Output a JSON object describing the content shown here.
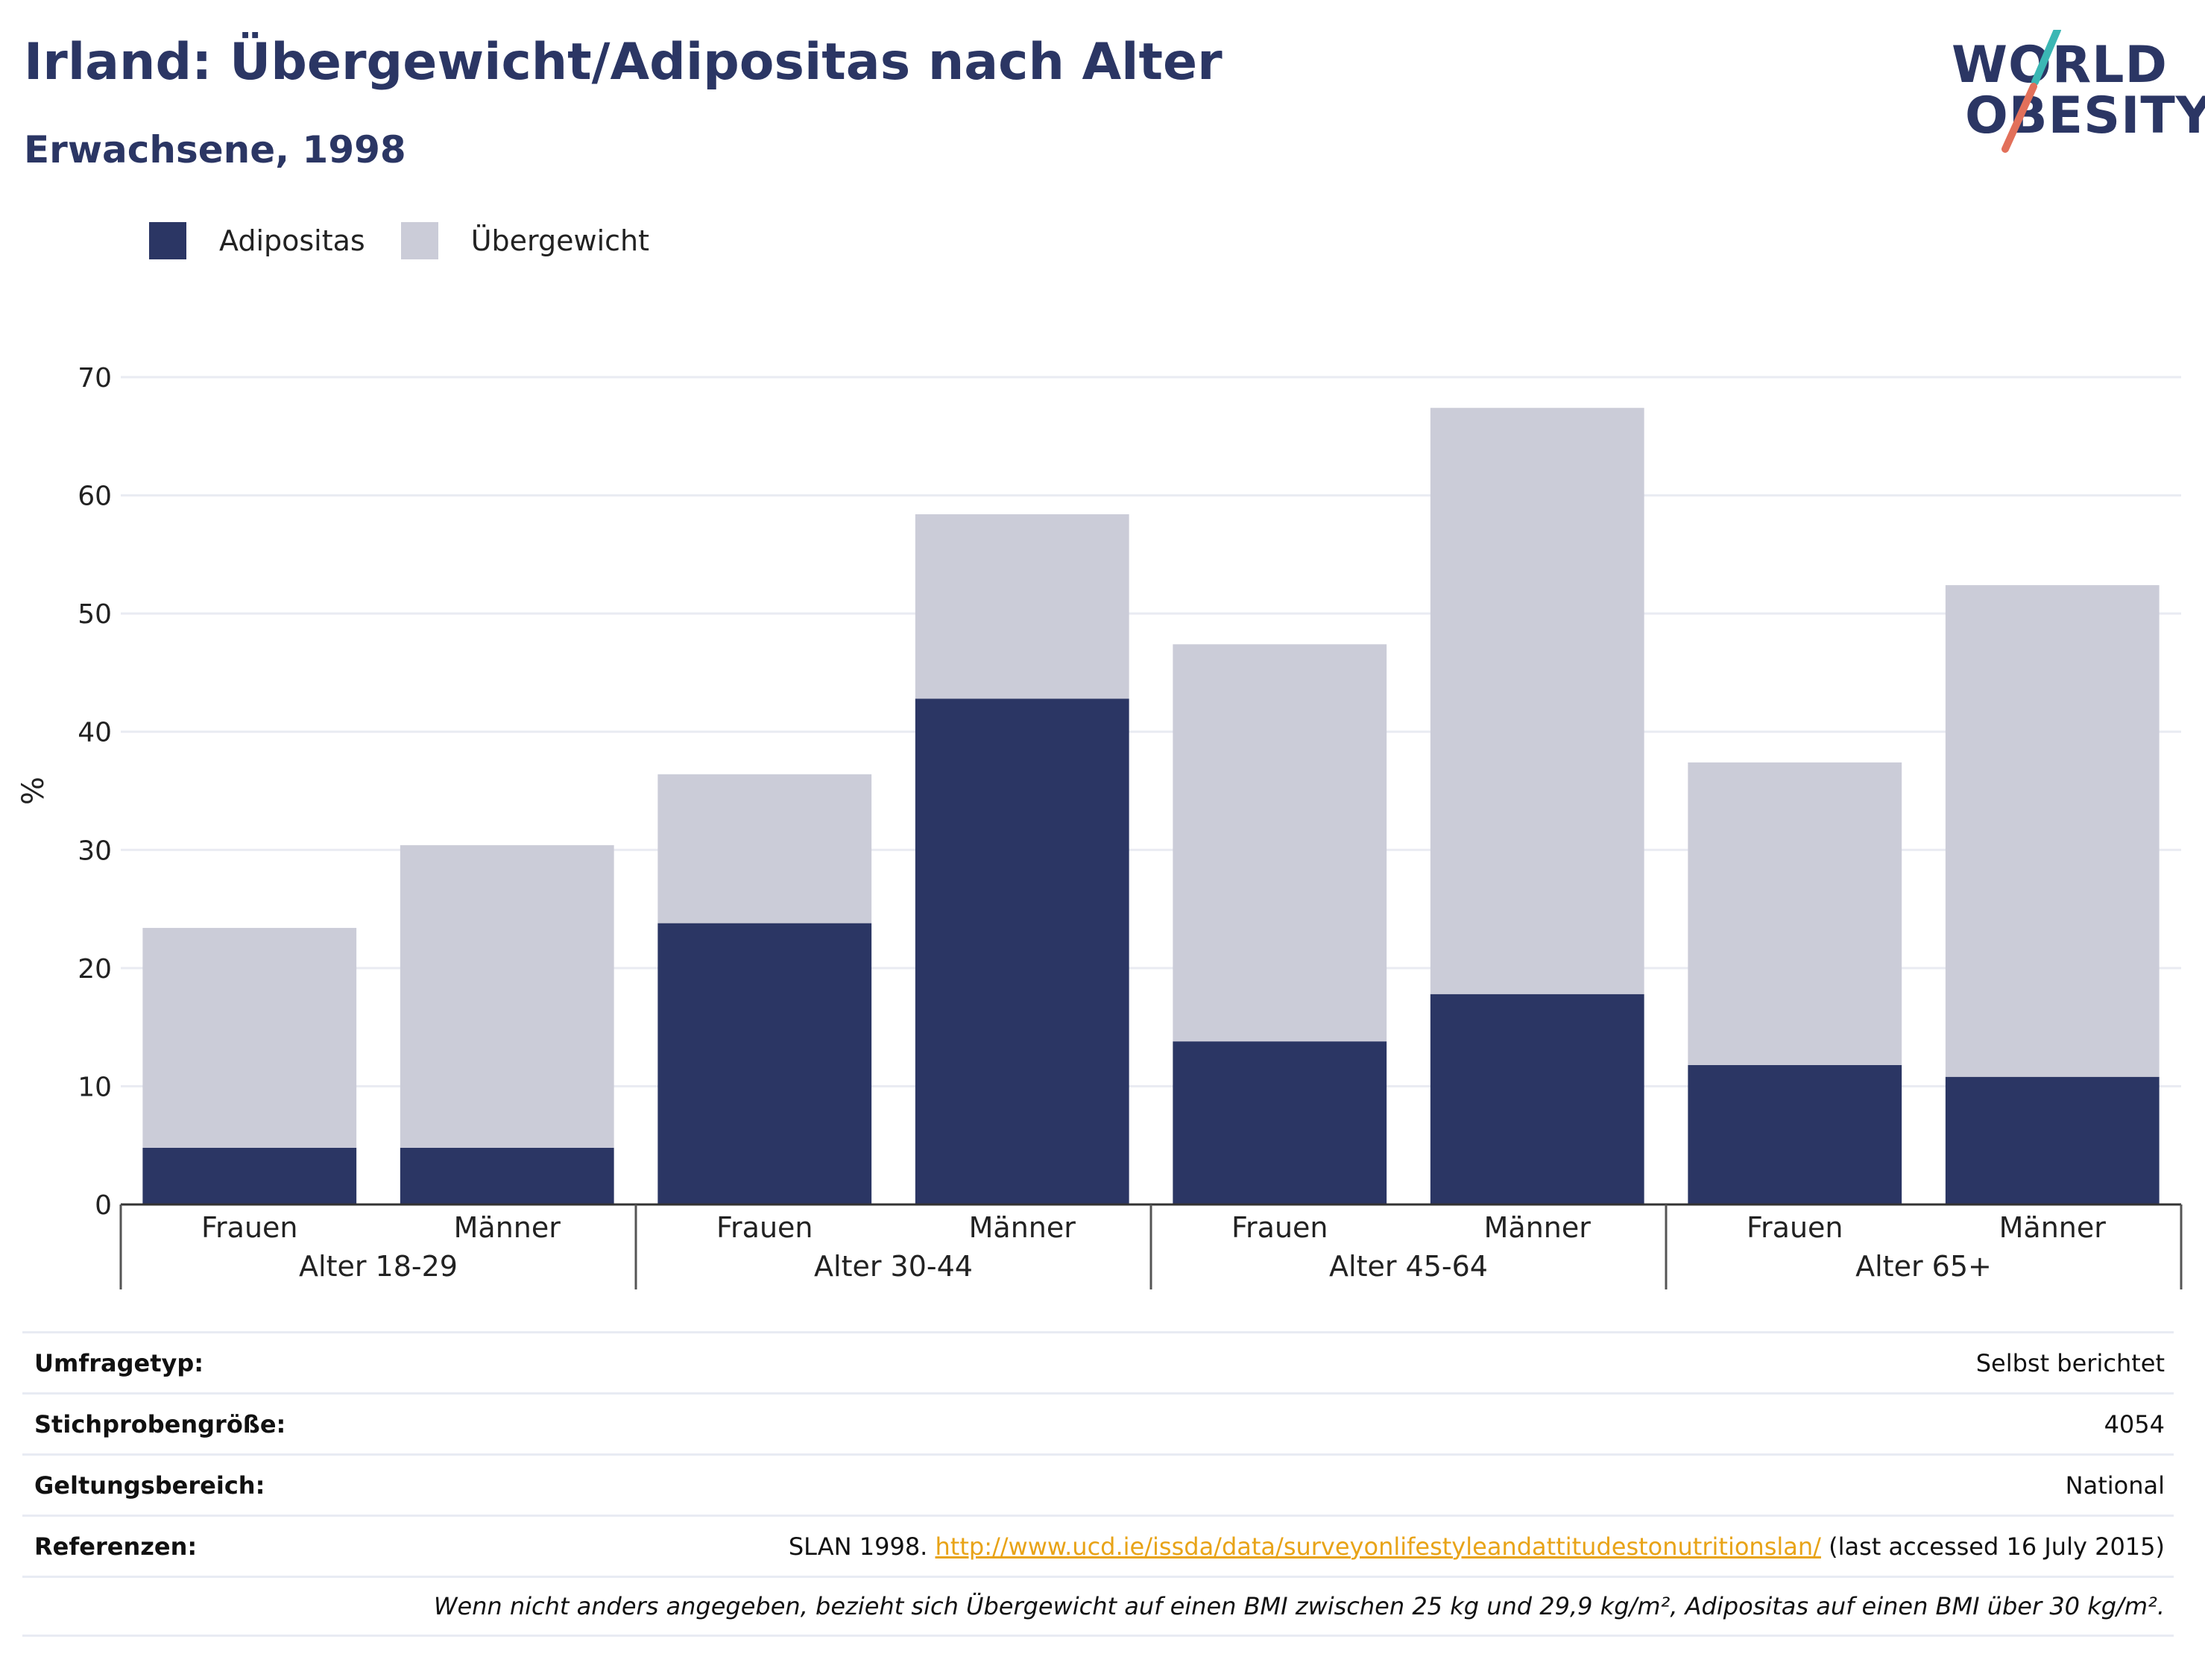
{
  "title": "Irland: Übergewicht/Adipositas nach Alter",
  "subtitle": "Erwachsene, 1998",
  "logo": {
    "line1": "WORLD",
    "line2": "OBESITY"
  },
  "colors": {
    "adipositas": "#2b3664",
    "uebergewicht": "#cbccd8",
    "accent_teal": "#3bb7b4",
    "accent_coral": "#e2705a",
    "link": "#e8a317"
  },
  "chart_data": {
    "type": "bar",
    "stacked": true,
    "ylabel": "%",
    "ylim": [
      0,
      70
    ],
    "yticks": [
      0,
      10,
      20,
      30,
      40,
      50,
      60,
      70
    ],
    "legend": {
      "position": "top-left",
      "entries": [
        "Adipositas",
        "Übergewicht"
      ]
    },
    "groups": [
      "Alter 18-29",
      "Alter 30-44",
      "Alter 45-64",
      "Alter 65+"
    ],
    "categories": [
      "Frauen",
      "Männer",
      "Frauen",
      "Männer",
      "Frauen",
      "Männer",
      "Frauen",
      "Männer"
    ],
    "series": [
      {
        "name": "Adipositas",
        "values": [
          4.8,
          4.8,
          23.8,
          42.8,
          13.8,
          17.8,
          11.8,
          10.8
        ]
      },
      {
        "name": "Übergewicht",
        "values": [
          18.6,
          25.6,
          12.6,
          15.6,
          33.6,
          49.6,
          25.6,
          41.6
        ]
      }
    ]
  },
  "info": {
    "survey_type": {
      "label": "Umfragetyp:",
      "value": "Selbst berichtet"
    },
    "sample_size": {
      "label": "Stichprobengröße:",
      "value": "4054"
    },
    "scope": {
      "label": "Geltungsbereich:",
      "value": "National"
    },
    "references": {
      "label": "Referenzen:",
      "prefix": "SLAN 1998.",
      "url": "http://www.ucd.ie/issda/data/surveyonlifestyleandattitudestonutritionslan/",
      "suffix": "(last accessed 16 July 2015)"
    },
    "note": "Wenn nicht anders angegeben, bezieht sich Übergewicht auf einen BMI zwischen 25 kg und 29,9 kg/m², Adipositas auf einen BMI über 30 kg/m²."
  }
}
